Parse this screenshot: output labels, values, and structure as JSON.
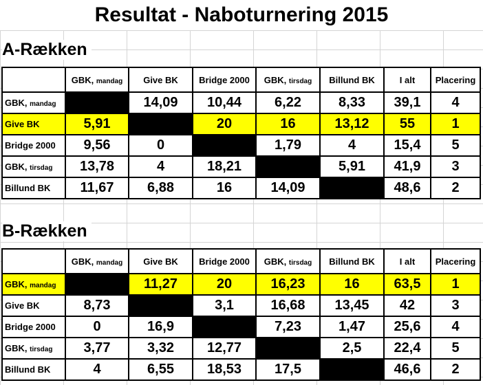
{
  "title": "Resultat - Naboturnering 2015",
  "a_section": {
    "heading": "A-Rækken",
    "headers": [
      "",
      "GBK, mandag",
      "Give BK",
      "Bridge 2000",
      "GBK, tirsdag",
      "Billund BK",
      "I alt",
      "Placering"
    ],
    "rows": [
      {
        "label": "GBK, mandag",
        "cells": [
          "",
          "14,09",
          "10,44",
          "6,22",
          "8,33",
          "39,1",
          "4"
        ],
        "blank_index": 0,
        "highlight": false
      },
      {
        "label": "Give BK",
        "cells": [
          "5,91",
          "",
          "20",
          "16",
          "13,12",
          "55",
          "1"
        ],
        "blank_index": 1,
        "highlight": true
      },
      {
        "label": "Bridge 2000",
        "cells": [
          "9,56",
          "0",
          "",
          "1,79",
          "4",
          "15,4",
          "5"
        ],
        "blank_index": 2,
        "highlight": false
      },
      {
        "label": "GBK, tirsdag",
        "cells": [
          "13,78",
          "4",
          "18,21",
          "",
          "5,91",
          "41,9",
          "3"
        ],
        "blank_index": 3,
        "highlight": false
      },
      {
        "label": "Billund BK",
        "cells": [
          "11,67",
          "6,88",
          "16",
          "14,09",
          "",
          "48,6",
          "2"
        ],
        "blank_index": 4,
        "highlight": false
      }
    ]
  },
  "b_section": {
    "heading": "B-Rækken",
    "headers": [
      "",
      "GBK, mandag",
      "Give BK",
      "Bridge 2000",
      "GBK, tirsdag",
      "Billund BK",
      "I alt",
      "Placering"
    ],
    "rows": [
      {
        "label": "GBK, mandag",
        "cells": [
          "",
          "11,27",
          "20",
          "16,23",
          "16",
          "63,5",
          "1"
        ],
        "blank_index": 0,
        "highlight": true
      },
      {
        "label": "Give BK",
        "cells": [
          "8,73",
          "",
          "3,1",
          "16,68",
          "13,45",
          "42",
          "3"
        ],
        "blank_index": 1,
        "highlight": false
      },
      {
        "label": "Bridge 2000",
        "cells": [
          "0",
          "16,9",
          "",
          "7,23",
          "1,47",
          "25,6",
          "4"
        ],
        "blank_index": 2,
        "highlight": false
      },
      {
        "label": "GBK, tirsdag",
        "cells": [
          "3,77",
          "3,32",
          "12,77",
          "",
          "2,5",
          "22,4",
          "5"
        ],
        "blank_index": 3,
        "highlight": false
      },
      {
        "label": "Billund BK",
        "cells": [
          "4",
          "6,55",
          "18,53",
          "17,5",
          "",
          "46,6",
          "2"
        ],
        "blank_index": 4,
        "highlight": false
      }
    ]
  },
  "colors": {
    "highlight": "#ffff00",
    "blank": "#000000",
    "gridline": "#d4d4d4"
  }
}
